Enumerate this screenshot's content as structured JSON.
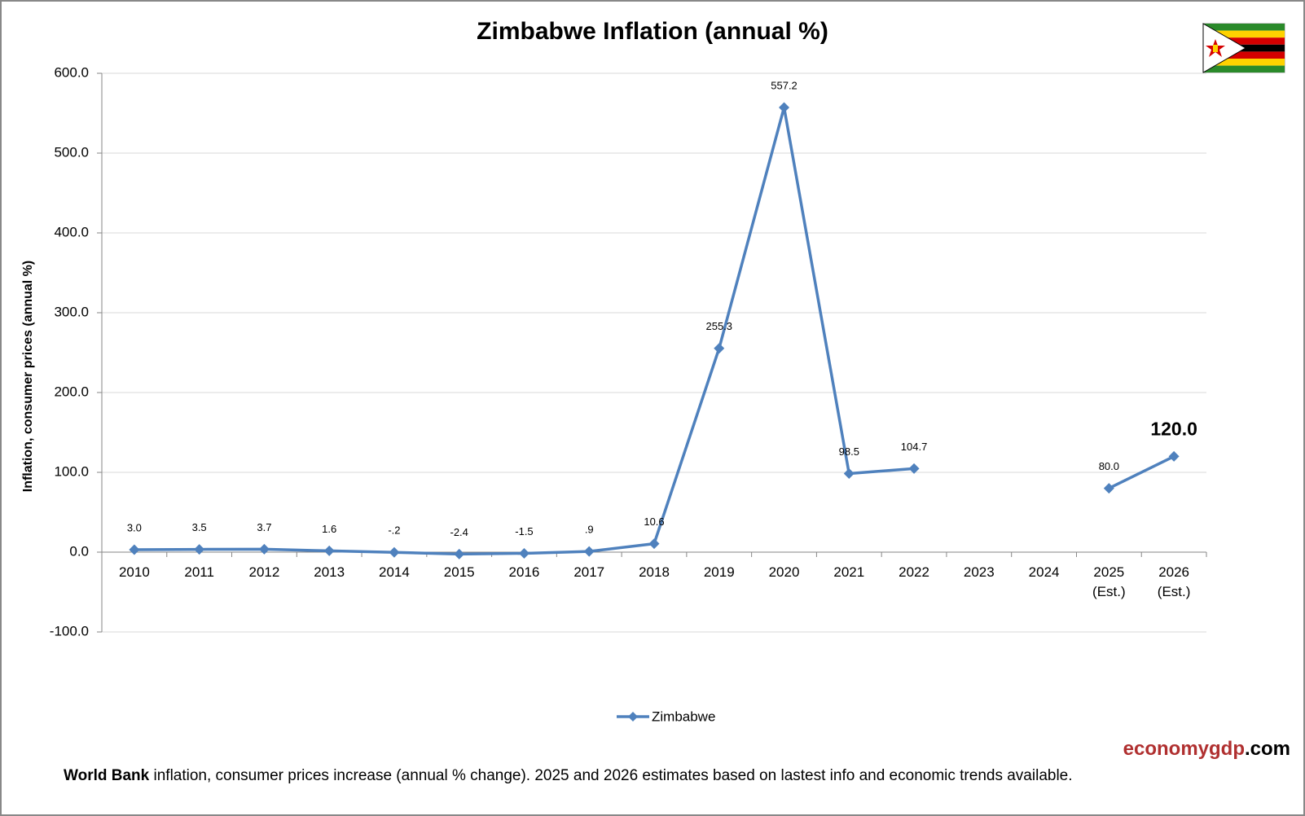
{
  "chart_data": {
    "type": "line",
    "title": "Zimbabwe Inflation (annual %)",
    "y_axis_label": "Inflation, consumer prices (annual %)",
    "categories": [
      "2010",
      "2011",
      "2012",
      "2013",
      "2014",
      "2015",
      "2016",
      "2017",
      "2018",
      "2019",
      "2020",
      "2021",
      "2022",
      "2023",
      "2024",
      "2025 (Est.)",
      "2026 (Est.)"
    ],
    "series": [
      {
        "name": "Zimbabwe",
        "color": "#4f81bd",
        "values": [
          3.0,
          3.5,
          3.7,
          1.6,
          -0.2,
          -2.4,
          -1.5,
          0.9,
          10.6,
          255.3,
          557.2,
          98.5,
          104.7,
          null,
          null,
          80.0,
          120.0
        ],
        "value_labels": [
          "3.0",
          "3.5",
          "3.7",
          "1.6",
          "-.2",
          "-2.4",
          "-1.5",
          ".9",
          "10.6",
          "255.3",
          "557.2",
          "98.5",
          "104.7",
          null,
          null,
          "80.0",
          "120.0"
        ]
      }
    ],
    "ylim": [
      -100,
      600
    ],
    "yticks": [
      {
        "value": -100,
        "label": "-100.0"
      },
      {
        "value": 0,
        "label": "0.0"
      },
      {
        "value": 100,
        "label": "100.0"
      },
      {
        "value": 200,
        "label": "200.0"
      },
      {
        "value": 300,
        "label": "300.0"
      },
      {
        "value": 400,
        "label": "400.0"
      },
      {
        "value": 500,
        "label": "500.0"
      },
      {
        "value": 600,
        "label": "600.0"
      }
    ],
    "grid": true,
    "legend": "bottom",
    "footnote_bold": "World Bank",
    "footnote": "inflation, consumer prices increase (annual % change).  2025 and 2026 estimates based on lastest info and economic trends available.",
    "brand": "economygdp",
    "brand_suffix": ".com"
  }
}
